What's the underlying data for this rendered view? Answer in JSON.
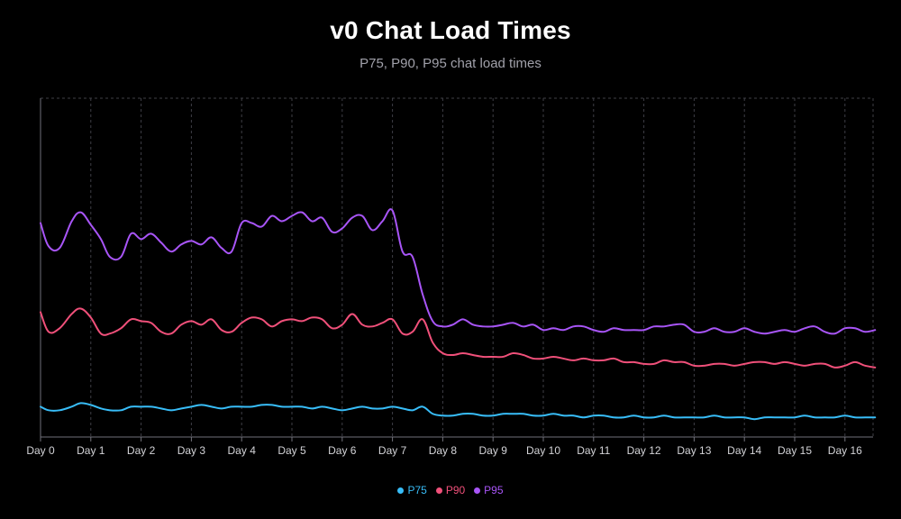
{
  "chart_data": {
    "type": "line",
    "title": "v0 Chat Load Times",
    "subtitle": "P75, P90, P95 chat load times",
    "xlabel": "",
    "ylabel": "",
    "x_tick_labels": [
      "Day 0",
      "Day 1",
      "Day 2",
      "Day 3",
      "Day 4",
      "Day 5",
      "Day 6",
      "Day 7",
      "Day 8",
      "Day 9",
      "Day 10",
      "Day 11",
      "Day 12",
      "Day 13",
      "Day 14",
      "Day 15",
      "Day 16"
    ],
    "x": [
      0,
      0.16,
      0.38,
      0.62,
      0.8,
      1.0,
      1.2,
      1.38,
      1.6,
      1.8,
      2.0,
      2.2,
      2.4,
      2.6,
      2.8,
      3.0,
      3.2,
      3.4,
      3.6,
      3.8,
      4.0,
      4.2,
      4.4,
      4.6,
      4.8,
      5.0,
      5.2,
      5.4,
      5.6,
      5.8,
      6.0,
      6.2,
      6.4,
      6.6,
      6.8,
      7.0,
      7.2,
      7.4,
      7.6,
      7.8,
      8.0,
      8.2,
      8.4,
      8.6,
      8.8,
      9.0,
      9.2,
      9.4,
      9.6,
      9.8,
      10.0,
      10.2,
      10.4,
      10.6,
      10.8,
      11.0,
      11.2,
      11.4,
      11.6,
      11.8,
      12.0,
      12.2,
      12.4,
      12.6,
      12.8,
      13.0,
      13.2,
      13.4,
      13.6,
      13.8,
      14.0,
      14.2,
      14.4,
      14.6,
      14.8,
      15.0,
      15.2,
      15.4,
      15.6,
      15.8,
      16.0,
      16.2,
      16.4,
      16.6
    ],
    "series": [
      {
        "name": "P95",
        "color": "#a855f7",
        "values": [
          120,
          107,
          106,
          121,
          126,
          119,
          111,
          101,
          101,
          114,
          111,
          114,
          109,
          104,
          108,
          110,
          108,
          112,
          106,
          104,
          120,
          120,
          118,
          124,
          121,
          124,
          126,
          121,
          123,
          115,
          117,
          123,
          124,
          116,
          121,
          127,
          104,
          101,
          80,
          65,
          62,
          63,
          66,
          63,
          62,
          62,
          63,
          64,
          62,
          63,
          60,
          61,
          60,
          62,
          62,
          60,
          59,
          61,
          60,
          60,
          60,
          62,
          62,
          63,
          63,
          59,
          59,
          61,
          59,
          59,
          61,
          59,
          58,
          59,
          60,
          59,
          61,
          62,
          59,
          58,
          61,
          61,
          59,
          60
        ]
      },
      {
        "name": "P90",
        "color": "#f0507a",
        "values": [
          70,
          59,
          61,
          69,
          72,
          67,
          58,
          58,
          61,
          66,
          65,
          64,
          59,
          58,
          63,
          65,
          63,
          66,
          60,
          59,
          64,
          67,
          66,
          62,
          65,
          66,
          65,
          67,
          66,
          61,
          63,
          69,
          63,
          62,
          64,
          66,
          58,
          59,
          66,
          53,
          47,
          46,
          47,
          46,
          45,
          45,
          45,
          47,
          46,
          44,
          44,
          45,
          44,
          43,
          44,
          43,
          43,
          44,
          42,
          42,
          41,
          41,
          43,
          42,
          42,
          40,
          40,
          41,
          41,
          40,
          41,
          42,
          42,
          41,
          42,
          41,
          40,
          41,
          41,
          39,
          40,
          42,
          40,
          39
        ]
      },
      {
        "name": "P75",
        "color": "#38bdf8",
        "values": [
          17,
          15,
          15,
          17,
          19,
          18,
          16,
          15,
          15,
          17,
          17,
          17,
          16,
          15,
          16,
          17,
          18,
          17,
          16,
          17,
          17,
          17,
          18,
          18,
          17,
          17,
          17,
          16,
          17,
          16,
          15,
          16,
          17,
          16,
          16,
          17,
          16,
          15,
          17,
          13,
          12,
          12,
          13,
          13,
          12,
          12,
          13,
          13,
          13,
          12,
          12,
          13,
          12,
          12,
          11,
          12,
          12,
          11,
          11,
          12,
          11,
          11,
          12,
          11,
          11,
          11,
          11,
          12,
          11,
          11,
          11,
          10,
          11,
          11,
          11,
          11,
          12,
          11,
          11,
          11,
          12,
          11,
          11,
          11
        ]
      }
    ],
    "legend": {
      "placement": "bottom-center",
      "entries": [
        {
          "label": "P75",
          "color": "#38bdf8"
        },
        {
          "label": "P90",
          "color": "#f0507a"
        },
        {
          "label": "P95",
          "color": "#a855f7"
        }
      ]
    },
    "ylim": [
      0,
      190
    ],
    "xlim": [
      0,
      16.6
    ],
    "grid": "dashed vertical gridlines at each day, no y-axis ticks",
    "curve": "smooth"
  }
}
